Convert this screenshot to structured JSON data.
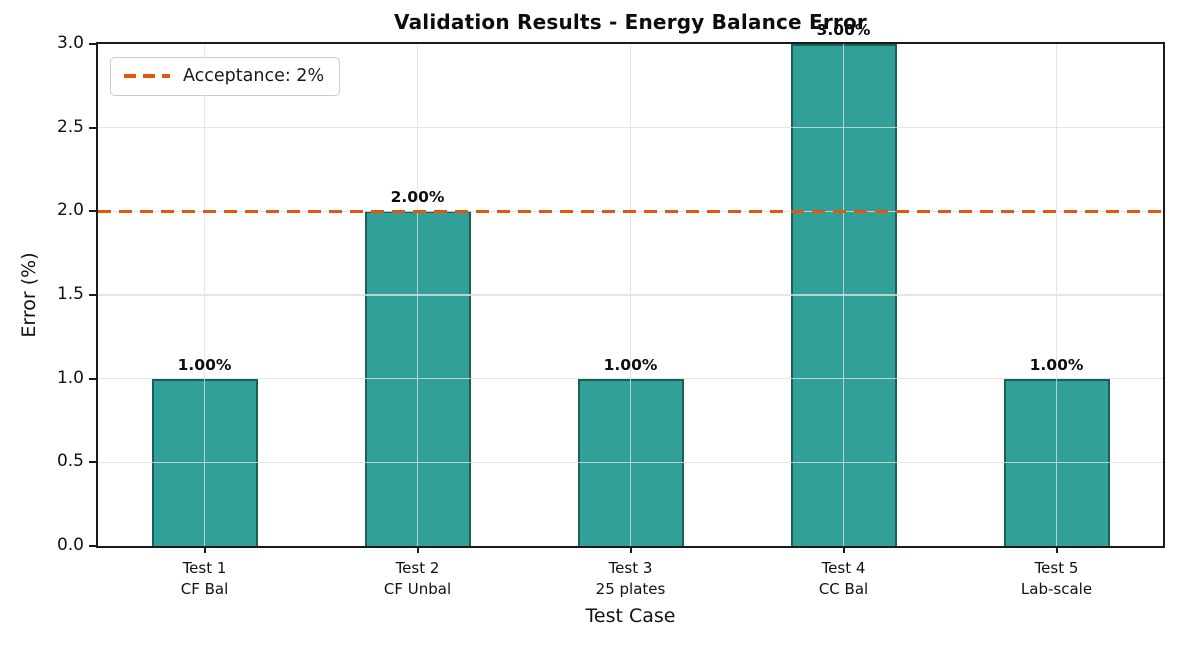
{
  "chart_data": {
    "type": "bar",
    "title": "Validation Results - Energy Balance Error",
    "xlabel": "Test Case",
    "ylabel": "Error (%)",
    "ylim": [
      0.0,
      3.0
    ],
    "yticks": [
      "0.0",
      "0.5",
      "1.0",
      "1.5",
      "2.0",
      "2.5",
      "3.0"
    ],
    "grid": true,
    "categories": [
      [
        "Test 1",
        "CF Bal"
      ],
      [
        "Test 2",
        "CF Unbal"
      ],
      [
        "Test 3",
        "25 plates"
      ],
      [
        "Test 4",
        "CC Bal"
      ],
      [
        "Test 5",
        "Lab-scale"
      ]
    ],
    "values": [
      1.0,
      2.0,
      1.0,
      3.0,
      1.0
    ],
    "bar_labels": [
      "1.00%",
      "2.00%",
      "1.00%",
      "3.00%",
      "1.00%"
    ],
    "acceptance_line": {
      "value": 2.0,
      "label": "Acceptance: 2%"
    },
    "legend_position": "upper-left",
    "colors": {
      "bar_fill": "#30a098",
      "bar_edge": "#1b5f58",
      "threshold_line": "#e2570b",
      "grid": "#e5e5e5",
      "text": "#111111",
      "spine": "#1a1a1a"
    }
  }
}
